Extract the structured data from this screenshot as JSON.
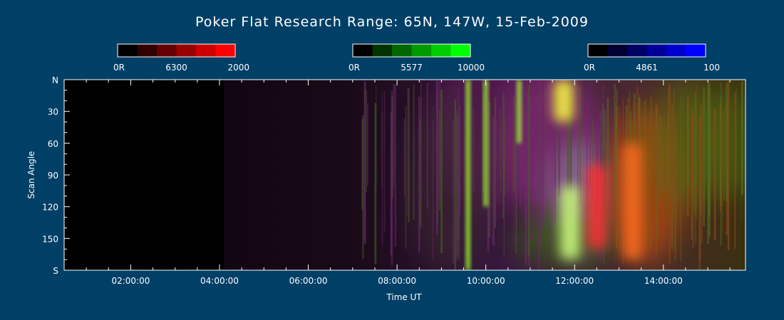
{
  "chart_data": {
    "type": "heatmap",
    "title": "Poker Flat Research Range: 65N, 147W, 15-Feb-2009",
    "xlabel": "Time UT",
    "ylabel": "Scan Angle",
    "x_range_hours": [
      0.5,
      15.85
    ],
    "x_ticks": [
      {
        "hour": 2,
        "label": "02:00:00"
      },
      {
        "hour": 4,
        "label": "04:00:00"
      },
      {
        "hour": 6,
        "label": "06:00:00"
      },
      {
        "hour": 8,
        "label": "08:00:00"
      },
      {
        "hour": 10,
        "label": "10:00:00"
      },
      {
        "hour": 12,
        "label": "12:00:00"
      },
      {
        "hour": 14,
        "label": "14:00:00"
      }
    ],
    "y_range": [
      0,
      180
    ],
    "y_ticks": [
      {
        "value": 0,
        "label": "N"
      },
      {
        "value": 30,
        "label": "30"
      },
      {
        "value": 60,
        "label": "60"
      },
      {
        "value": 90,
        "label": "90"
      },
      {
        "value": 120,
        "label": "120"
      },
      {
        "value": 150,
        "label": "150"
      },
      {
        "value": 180,
        "label": "S"
      }
    ],
    "colorbars": [
      {
        "name": "6300",
        "min_label": "0R",
        "mid_label": "6300",
        "max_label": "2000",
        "colors": [
          "#000000",
          "#330000",
          "#660000",
          "#990000",
          "#cc0000",
          "#ff0000"
        ]
      },
      {
        "name": "5577",
        "min_label": "0R",
        "mid_label": "5577",
        "max_label": "10000",
        "colors": [
          "#000000",
          "#003300",
          "#006600",
          "#009900",
          "#00cc00",
          "#00ff00"
        ]
      },
      {
        "name": "4861",
        "min_label": "0R",
        "mid_label": "4861",
        "max_label": "100",
        "colors": [
          "#000000",
          "#000033",
          "#000066",
          "#000099",
          "#0000cc",
          "#0000ff"
        ]
      }
    ],
    "data_start_hour": 4.1,
    "features": [
      {
        "hour": 9.6,
        "scan_angle_range": [
          0,
          180
        ],
        "color": "#a0ff30"
      },
      {
        "hour": 10.0,
        "scan_angle_range": [
          0,
          120
        ],
        "color": "#a0ff30"
      },
      {
        "hour": 10.75,
        "scan_angle_range": [
          0,
          60
        ],
        "color": "#a0ff30"
      },
      {
        "hour": 11.75,
        "scan_angle_range": [
          0,
          40
        ],
        "color": "#ffff40"
      },
      {
        "hour": 11.9,
        "scan_angle_range": [
          100,
          170
        ],
        "color": "#d0ff80"
      },
      {
        "hour": 12.5,
        "scan_angle_range": [
          80,
          160
        ],
        "color": "#ff3030"
      },
      {
        "hour": 13.3,
        "scan_angle_range": [
          60,
          170
        ],
        "color": "#ff6a1a"
      }
    ]
  }
}
